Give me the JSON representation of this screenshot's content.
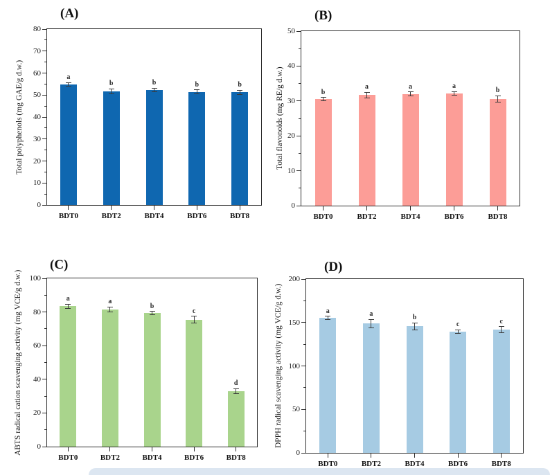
{
  "figure": {
    "error_bar_color": "#3a3a3a",
    "axis_color": "#2b2b2b",
    "footer_strip_color": "#dce6f1"
  },
  "chart_data": [
    {
      "type": "bar",
      "panel_label": "(A)",
      "title": "",
      "xlabel": "",
      "ylabel": "Total polyphenols (mg GAE/g d.w.)",
      "categories": [
        "BDT0",
        "BDT2",
        "BDT4",
        "BDT6",
        "BDT8"
      ],
      "values": [
        54.8,
        51.8,
        52.3,
        51.5,
        51.2
      ],
      "errors": [
        0.9,
        1.1,
        0.8,
        0.9,
        1.0
      ],
      "sig_letters": [
        "a",
        "b",
        "b",
        "b",
        "b"
      ],
      "ylim": [
        0,
        80
      ],
      "major_tick": 10,
      "minor_tick": 5,
      "bar_color": "#0f67b0",
      "grid": false,
      "legend": "none"
    },
    {
      "type": "bar",
      "panel_label": "(B)",
      "title": "",
      "xlabel": "",
      "ylabel": "Total flavonoids (mg RE/g d.w.)",
      "categories": [
        "BDT0",
        "BDT2",
        "BDT4",
        "BDT6",
        "BDT8"
      ],
      "values": [
        30.5,
        31.7,
        32.0,
        32.2,
        30.6
      ],
      "errors": [
        0.5,
        0.8,
        0.6,
        0.5,
        0.9
      ],
      "sig_letters": [
        "b",
        "a",
        "a",
        "a",
        "b"
      ],
      "ylim": [
        0,
        50
      ],
      "major_tick": 10,
      "minor_tick": 5,
      "bar_color": "#fc9d97",
      "grid": false,
      "legend": "none"
    },
    {
      "type": "bar",
      "panel_label": "(C)",
      "title": "",
      "xlabel": "",
      "ylabel": "ABTS radical cation scavenging activity (mg VCE/g d.w.)",
      "categories": [
        "BDT0",
        "BDT2",
        "BDT4",
        "BDT6",
        "BDT8"
      ],
      "values": [
        83.5,
        81.5,
        79.4,
        75.5,
        33.0
      ],
      "errors": [
        1.2,
        1.5,
        1.0,
        2.0,
        1.5
      ],
      "sig_letters": [
        "a",
        "a",
        "b",
        "c",
        "d"
      ],
      "ylim": [
        0,
        100
      ],
      "major_tick": 20,
      "minor_tick": 10,
      "bar_color": "#a9d48c",
      "grid": false,
      "legend": "none"
    },
    {
      "type": "bar",
      "panel_label": "(D)",
      "title": "",
      "xlabel": "",
      "ylabel": "DPPH radical scavenging activity (mg VCE/g d.w.)",
      "categories": [
        "BDT0",
        "BDT2",
        "BDT4",
        "BDT6",
        "BDT8"
      ],
      "values": [
        155.0,
        148.7,
        145.5,
        139.7,
        141.6
      ],
      "errors": [
        2.0,
        5.0,
        4.0,
        2.0,
        3.5
      ],
      "sig_letters": [
        "a",
        "a",
        "b",
        "c",
        "c"
      ],
      "ylim": [
        0,
        200
      ],
      "major_tick": 50,
      "minor_tick": 25,
      "bar_color": "#a6cbe3",
      "grid": false,
      "legend": "none"
    }
  ]
}
